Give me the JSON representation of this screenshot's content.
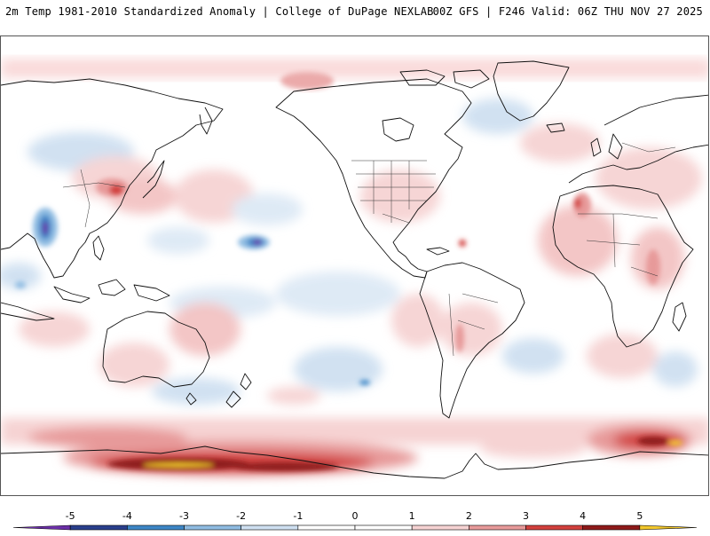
{
  "header": {
    "left": "2m Temp 1981-2010 Standardized Anomaly | College of DuPage NEXLAB",
    "right": "00Z GFS | F246 Valid: 06Z THU NOV 27 2025"
  },
  "colors": {
    "background": "#ffffff",
    "coastline": "#111111",
    "border": "#333333",
    "scale": [
      "#6b2fa8",
      "#2a3f8c",
      "#3d86c6",
      "#8fbce2",
      "#cfe0f1",
      "#ffffff",
      "#ffffff",
      "#f6d3d3",
      "#e79a9a",
      "#d2403d",
      "#8e1a1a",
      "#f2c72b"
    ]
  },
  "colorbar": {
    "labels": [
      "-5",
      "-4",
      "-3",
      "-2",
      "-1",
      "0",
      "1",
      "2",
      "3",
      "4",
      "5"
    ]
  },
  "map": {
    "projection": "global equirectangular, Pacific-centered",
    "notable_regions": [
      "warm anomalies over Antarctica / Southern Ocean",
      "warm anomalies over northern Africa",
      "cold anomaly over central Pacific",
      "cold anomaly over Southeast Asia"
    ]
  }
}
